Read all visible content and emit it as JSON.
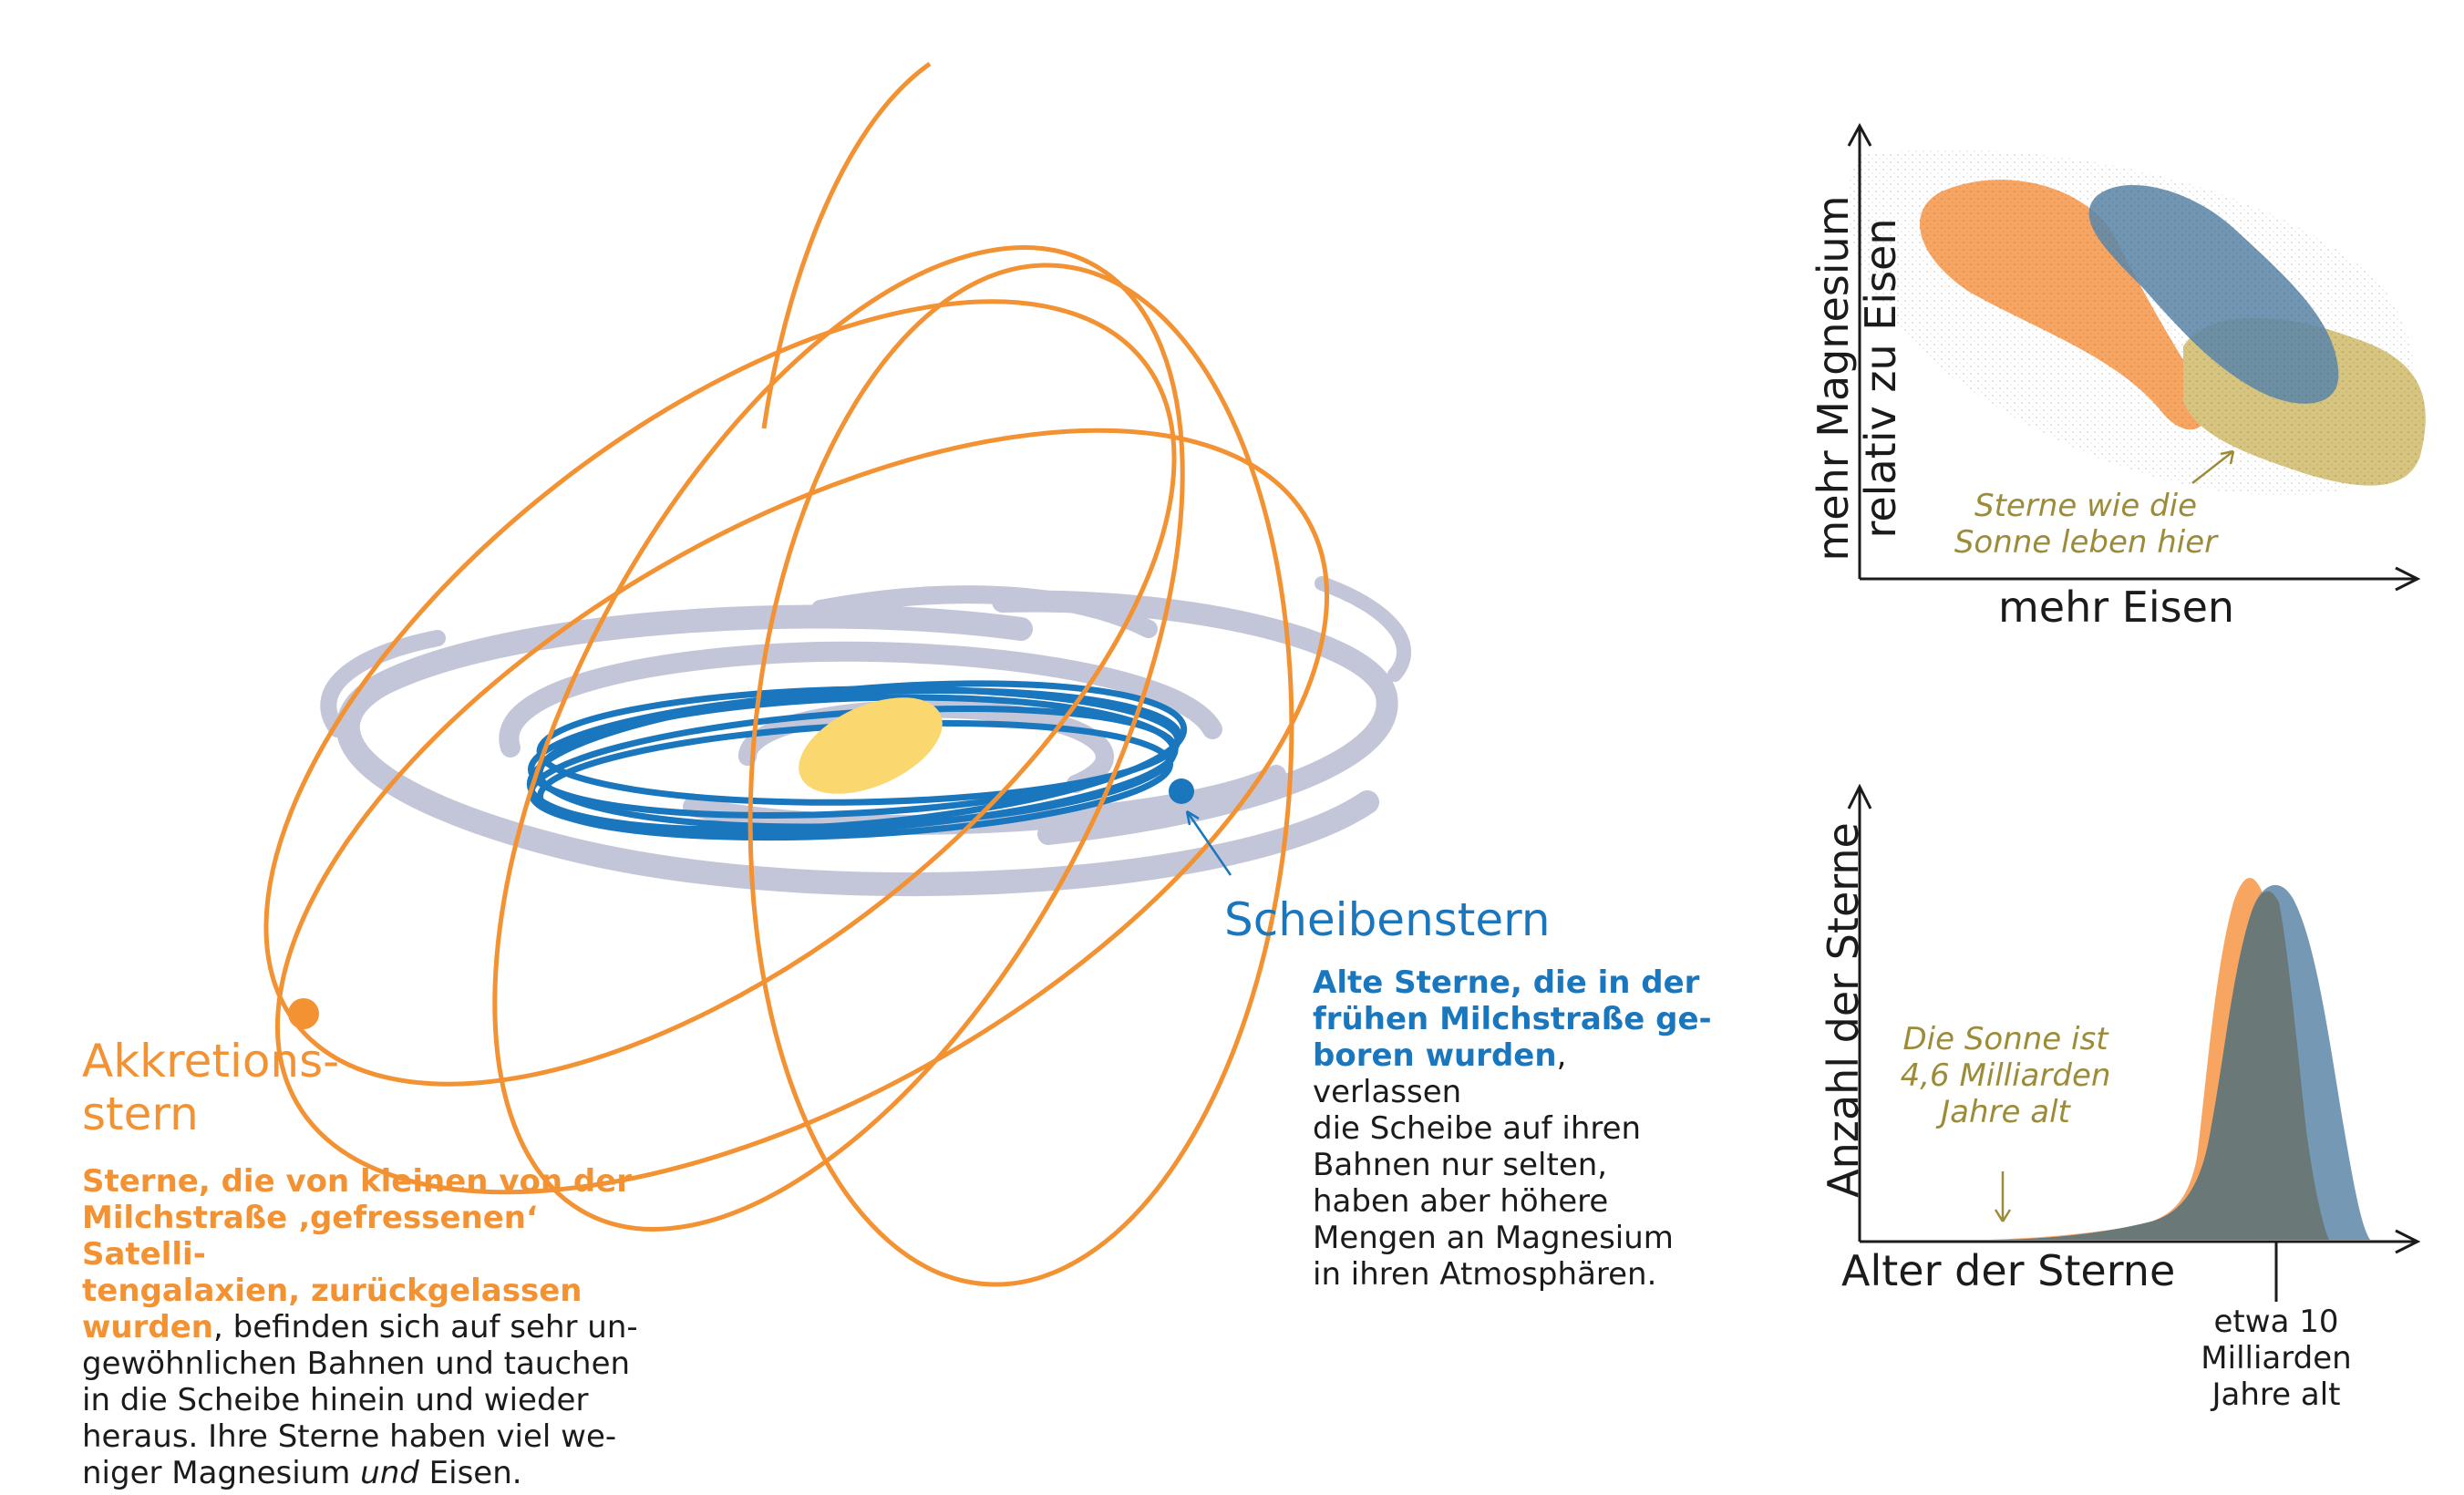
{
  "colors": {
    "orange": "#f39233",
    "blue": "#1a76bd",
    "disk_gray": "#c3c6d8",
    "bulge": "#fbd770",
    "olive": "#9c8c3a",
    "blob_orange": "#f8a562",
    "blob_blue": "#5d87a8",
    "blob_olive": "#d6c47f",
    "dark": "#1b1b1b"
  },
  "labels": {
    "disk_star_title": "Scheibenstern",
    "disk_star_desc_bold_1": "Alte Sterne, die in der",
    "disk_star_desc_bold_2": "frühen Milchstraße ge-",
    "disk_star_desc_bold_3": "boren wurden",
    "disk_star_desc_3_rest": ", verlassen",
    "disk_star_desc_4": "die Scheibe auf ihren",
    "disk_star_desc_5": "Bahnen nur selten,",
    "disk_star_desc_6": "haben aber höhere",
    "disk_star_desc_7": "Mengen an Magnesium",
    "disk_star_desc_8": "in ihren Atmosphären.",
    "accretion_title_1": "Akkretions-",
    "accretion_title_2": "stern",
    "accretion_desc_bold_1": "Sterne, die von kleinen von der",
    "accretion_desc_bold_2": "Milchstraße ‚gefressenen‘ Satelli-",
    "accretion_desc_bold_3": "tengalaxien, zurückgelassen",
    "accretion_desc_bold_4": "wurden",
    "accretion_desc_4_rest": ", befinden sich auf sehr un-",
    "accretion_desc_5": "gewöhnlichen Bahnen und tauchen",
    "accretion_desc_6": "in die Scheibe hinein und wieder",
    "accretion_desc_7": "heraus. Ihre Sterne haben viel we-",
    "accretion_desc_8_pre": "niger Magnesium ",
    "accretion_desc_8_italic": "und",
    "accretion_desc_8_post": " Eisen."
  },
  "scatter_chart": {
    "ylabel_1": "mehr Magnesium",
    "ylabel_2": "relativ zu Eisen",
    "xlabel": "mehr Eisen",
    "annotation_1": "Sterne wie die",
    "annotation_2": "Sonne leben hier"
  },
  "age_chart": {
    "ylabel": "Anzahl der Sterne",
    "xlabel": "Alter der Sterne",
    "annotation_1": "Die Sonne ist",
    "annotation_2": "4,6 Milliarden",
    "annotation_3": "Jahre alt",
    "tick_1": "etwa 10",
    "tick_2": "Milliarden",
    "tick_3": "Jahre alt"
  }
}
